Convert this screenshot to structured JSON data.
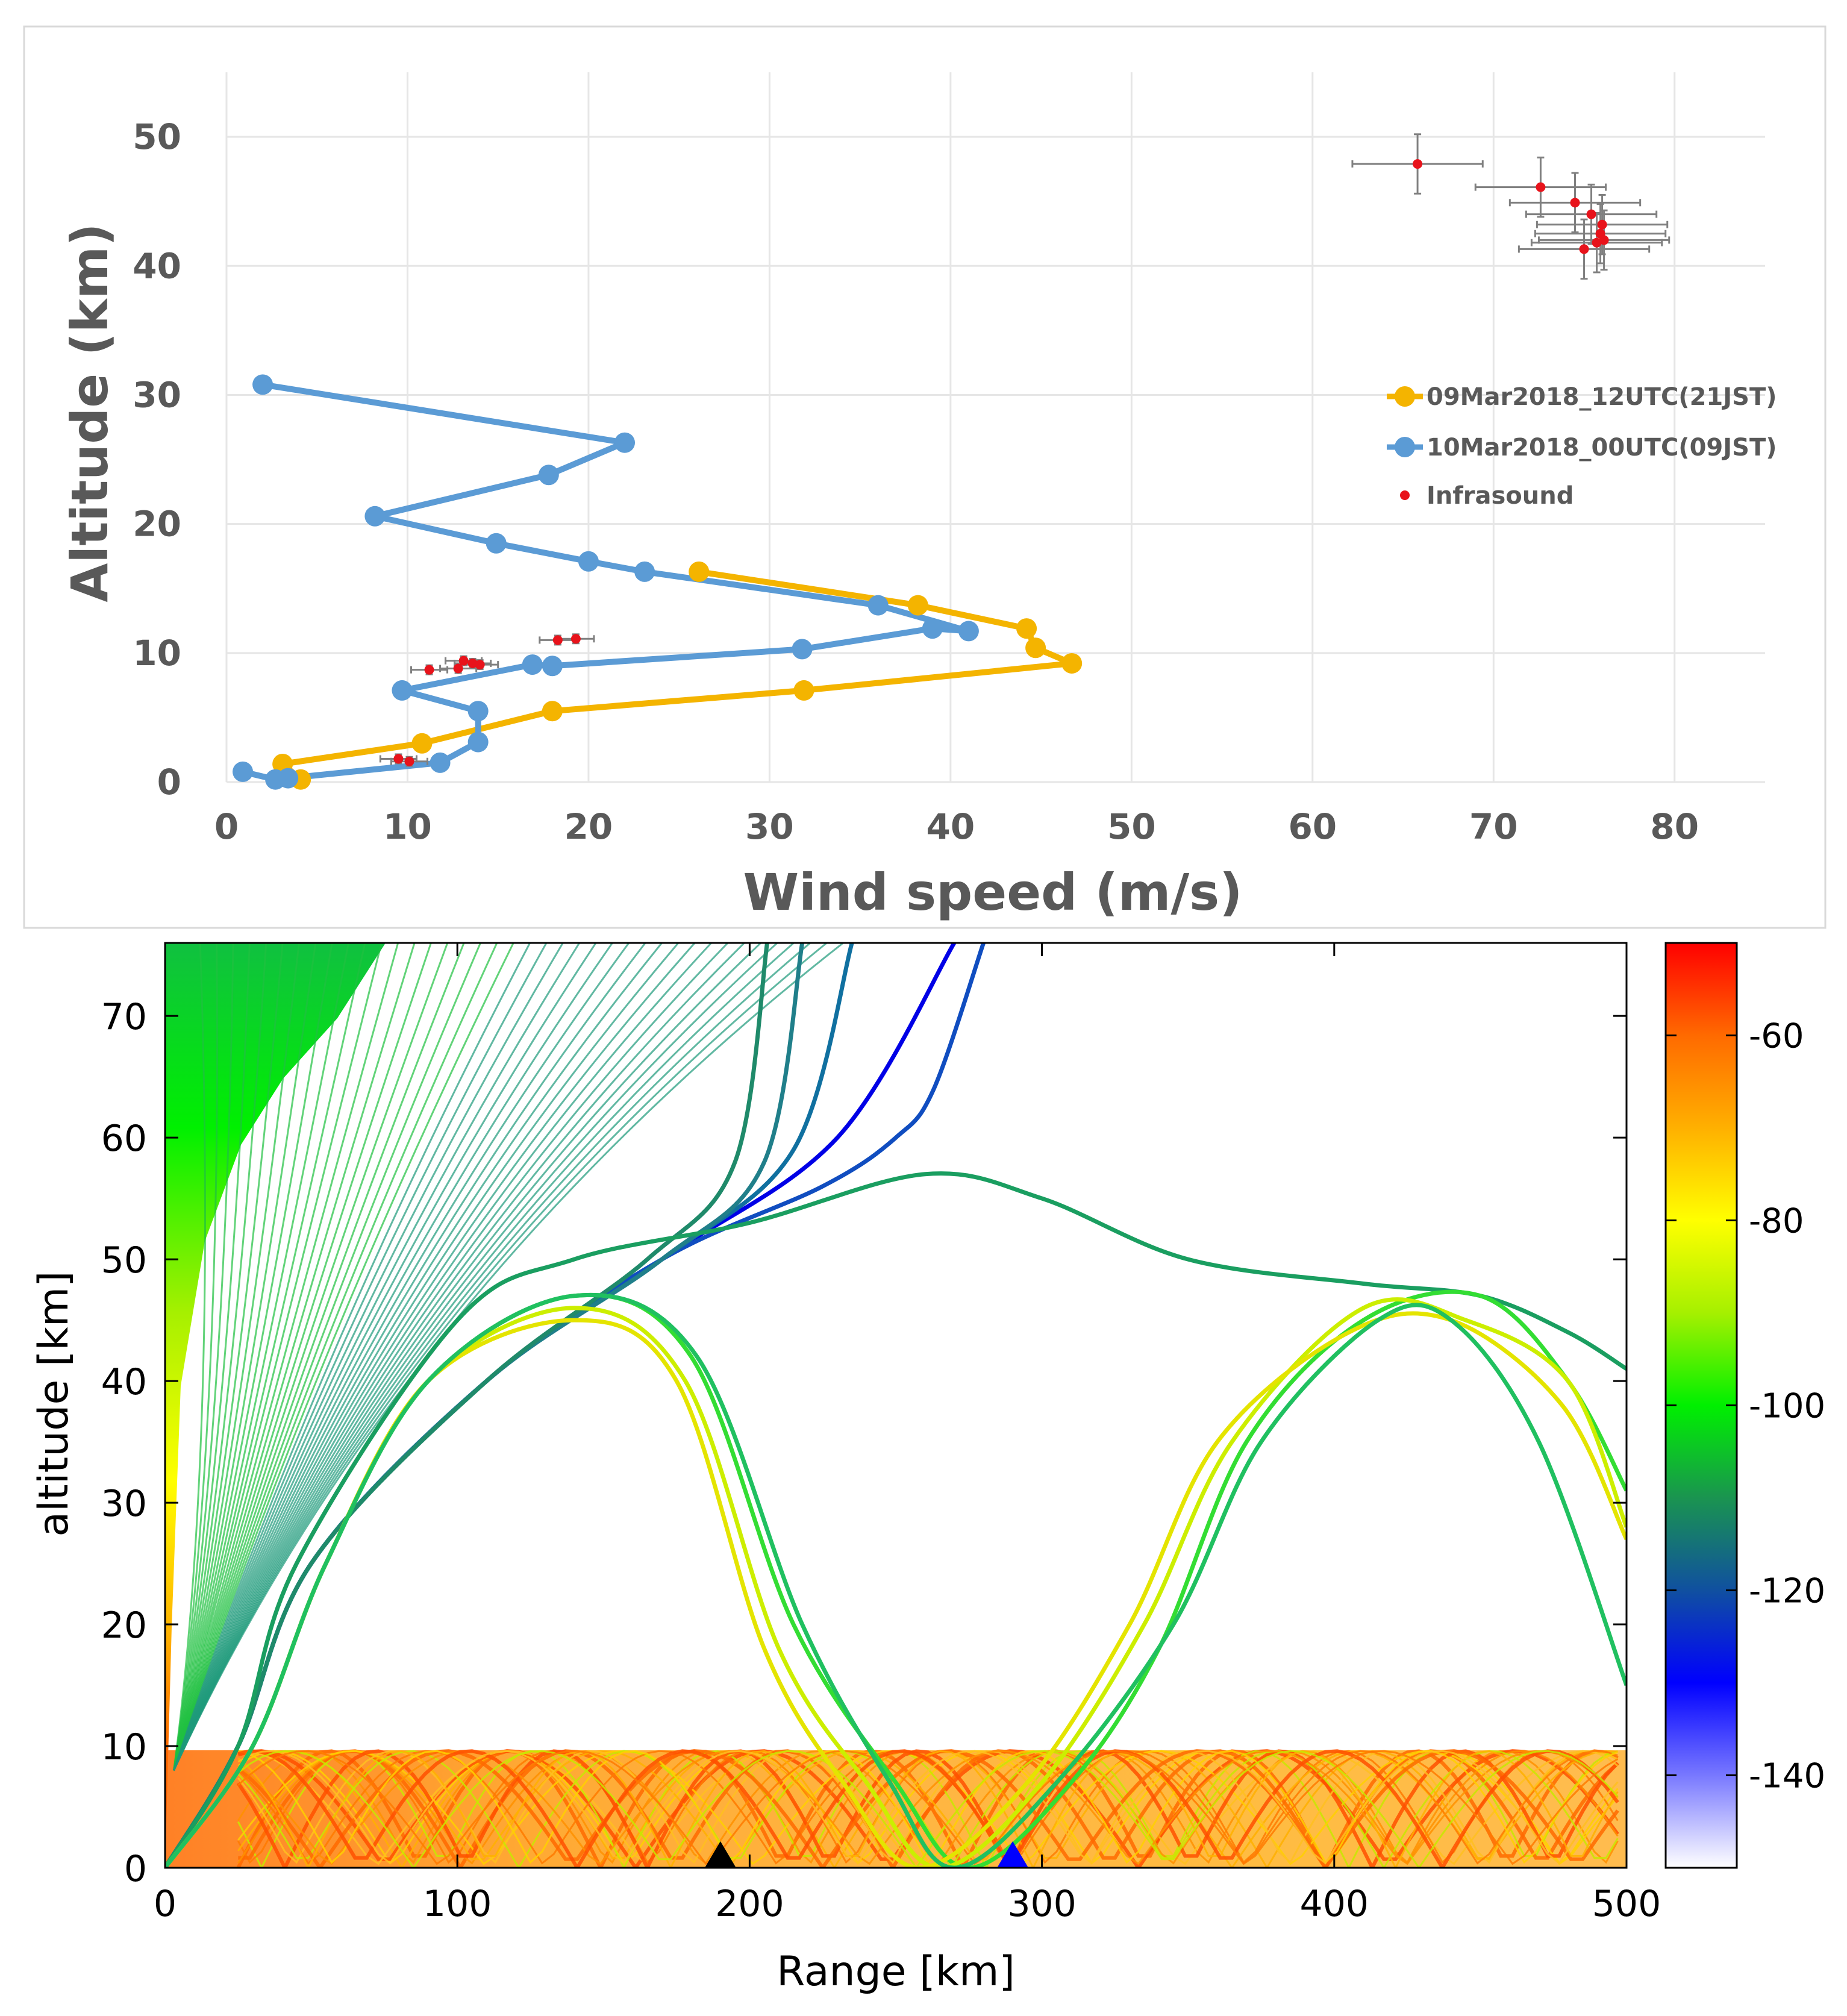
{
  "chart_data": [
    {
      "type": "scatter",
      "title": "",
      "xlabel": "Wind speed (m/s)",
      "ylabel": "Altitude (km)",
      "xlim": [
        0,
        85
      ],
      "ylim": [
        0,
        55
      ],
      "xticks": [
        "0",
        "10",
        "20",
        "30",
        "40",
        "50",
        "60",
        "70",
        "80"
      ],
      "yticks": [
        "0",
        "10",
        "20",
        "30",
        "40",
        "50"
      ],
      "grid": true,
      "legend_position": "right",
      "series": [
        {
          "name": "09Mar2018_12UTC(21JST)",
          "color": "#F4B400",
          "points": [
            [
              4.1,
              0.2
            ],
            [
              3.1,
              1.4
            ],
            [
              10.8,
              3.0
            ],
            [
              18.0,
              5.5
            ],
            [
              31.9,
              7.1
            ],
            [
              46.7,
              9.2
            ],
            [
              44.7,
              10.4
            ],
            [
              44.2,
              11.9
            ],
            [
              38.2,
              13.7
            ],
            [
              26.1,
              16.3
            ]
          ]
        },
        {
          "name": "10Mar2018_00UTC(09JST)",
          "color": "#5B9BD5",
          "points": [
            [
              2.0,
              30.8
            ],
            [
              22.0,
              26.3
            ],
            [
              17.8,
              23.8
            ],
            [
              8.2,
              20.6
            ],
            [
              14.9,
              18.5
            ],
            [
              20.0,
              17.1
            ],
            [
              23.1,
              16.3
            ],
            [
              36.0,
              13.7
            ],
            [
              41.0,
              11.7
            ],
            [
              39.0,
              11.9
            ],
            [
              31.8,
              10.3
            ],
            [
              18.0,
              9.0
            ],
            [
              16.9,
              9.1
            ],
            [
              9.7,
              7.1
            ],
            [
              13.9,
              5.5
            ],
            [
              13.9,
              3.1
            ],
            [
              11.8,
              1.5
            ],
            [
              3.4,
              0.3
            ],
            [
              2.7,
              0.2
            ],
            [
              0.9,
              0.8
            ]
          ]
        },
        {
          "name": "Infrasound",
          "color": "#E8131B",
          "points": [
            [
              65.8,
              47.9
            ],
            [
              72.6,
              46.1
            ],
            [
              74.5,
              44.9
            ],
            [
              75.4,
              44.0
            ],
            [
              76.0,
              43.2
            ],
            [
              75.9,
              42.5
            ],
            [
              76.1,
              42.0
            ],
            [
              75.7,
              41.8
            ],
            [
              75.0,
              41.3
            ],
            [
              18.3,
              11.0
            ],
            [
              19.3,
              11.1
            ],
            [
              13.1,
              9.4
            ],
            [
              13.6,
              9.2
            ],
            [
              14.0,
              9.1
            ],
            [
              12.8,
              8.8
            ],
            [
              11.2,
              8.7
            ],
            [
              9.5,
              1.8
            ],
            [
              10.1,
              1.6
            ]
          ]
        }
      ]
    },
    {
      "type": "line",
      "title": "",
      "xlabel": "Range [km]",
      "ylabel": "altitude [km]",
      "xlim": [
        0,
        500
      ],
      "ylim": [
        0,
        75
      ],
      "xticks": [
        "0",
        "100",
        "200",
        "300",
        "400",
        "500"
      ],
      "yticks": [
        "0",
        "10",
        "20",
        "30",
        "40",
        "50",
        "60",
        "70"
      ],
      "colorbar": {
        "range": [
          -150,
          -50
        ],
        "ticks": [
          "-60",
          "-80",
          "-100",
          "-120",
          "-140"
        ],
        "colormap": [
          "#FF0000",
          "#FF6A00",
          "#FFB000",
          "#FFFF00",
          "#A6F000",
          "#00F000",
          "#1A9450",
          "#1050A0",
          "#0000FF",
          "#7878FF",
          "#FFFFFF"
        ]
      },
      "series": [
        {
          "name": "escaping-ray-1",
          "color": "#0000E6",
          "points": [
            [
              0,
              0
            ],
            [
              25,
              10
            ],
            [
              50,
              25
            ],
            [
              110,
              40
            ],
            [
              170,
              50
            ],
            [
              230,
              60
            ],
            [
              270,
              76
            ]
          ]
        },
        {
          "name": "escaping-ray-2",
          "color": "#104DC0",
          "points": [
            [
              0,
              0
            ],
            [
              25,
              10
            ],
            [
              50,
              25
            ],
            [
              110,
              40
            ],
            [
              170,
              50
            ],
            [
              225,
              56
            ],
            [
              250,
              60
            ],
            [
              263,
              64
            ],
            [
              280,
              76
            ]
          ]
        },
        {
          "name": "escaping-ray-3",
          "color": "#1070A0",
          "points": [
            [
              0,
              0
            ],
            [
              25,
              10
            ],
            [
              50,
              25
            ],
            [
              110,
              40
            ],
            [
              170,
              50
            ],
            [
              215,
              59
            ],
            [
              235,
              76
            ]
          ]
        },
        {
          "name": "escaping-ray-4",
          "color": "#207F8A",
          "points": [
            [
              0,
              0
            ],
            [
              25,
              10
            ],
            [
              50,
              25
            ],
            [
              110,
              40
            ],
            [
              170,
              50
            ],
            [
              205,
              58
            ],
            [
              218,
              76
            ]
          ]
        },
        {
          "name": "escaping-ray-5",
          "color": "#1F8A6A",
          "points": [
            [
              0,
              0
            ],
            [
              25,
              10
            ],
            [
              50,
              25
            ],
            [
              110,
              40
            ],
            [
              165,
              50
            ],
            [
              195,
              58
            ],
            [
              206,
              76
            ]
          ]
        },
        {
          "name": "high-ray",
          "color": "#1A9E60",
          "points": [
            [
              0,
              0
            ],
            [
              25,
              10
            ],
            [
              45,
              25
            ],
            [
              100,
              45
            ],
            [
              140,
              50
            ],
            [
              200,
              53
            ],
            [
              260,
              57
            ],
            [
              300,
              55
            ],
            [
              350,
              50
            ],
            [
              410,
              48
            ],
            [
              450,
              47
            ],
            [
              480,
              44
            ],
            [
              500,
              41
            ]
          ]
        },
        {
          "name": "strato-ray-1",
          "color": "#33DD33",
          "points": [
            [
              0,
              0
            ],
            [
              30,
              10
            ],
            [
              55,
              25
            ],
            [
              90,
              40
            ],
            [
              140,
              47
            ],
            [
              180,
              42
            ],
            [
              215,
              20
            ],
            [
              250,
              7
            ],
            [
              275,
              0
            ],
            [
              310,
              7
            ],
            [
              340,
              18
            ],
            [
              370,
              35
            ],
            [
              410,
              45
            ],
            [
              450,
              47
            ],
            [
              480,
              40
            ],
            [
              500,
              31
            ]
          ]
        },
        {
          "name": "strato-ray-2",
          "color": "#CCEE00",
          "points": [
            [
              0,
              0
            ],
            [
              30,
              10
            ],
            [
              55,
              25
            ],
            [
              90,
              40
            ],
            [
              140,
              46
            ],
            [
              178,
              40
            ],
            [
              210,
              18
            ],
            [
              240,
              7
            ],
            [
              265,
              0
            ],
            [
              300,
              7
            ],
            [
              335,
              20
            ],
            [
              365,
              35
            ],
            [
              410,
              46
            ],
            [
              445,
              45
            ],
            [
              480,
              40
            ],
            [
              500,
              28
            ]
          ]
        },
        {
          "name": "strato-ray-3",
          "color": "#E4E400",
          "points": [
            [
              0,
              0
            ],
            [
              30,
              10
            ],
            [
              55,
              25
            ],
            [
              90,
              40
            ],
            [
              140,
              45
            ],
            [
              175,
              40
            ],
            [
              205,
              18
            ],
            [
              232,
              7
            ],
            [
              258,
              0
            ],
            [
              295,
              7
            ],
            [
              330,
              20
            ],
            [
              360,
              35
            ],
            [
              405,
              44
            ],
            [
              440,
              45
            ],
            [
              478,
              38
            ],
            [
              500,
              27
            ]
          ]
        },
        {
          "name": "strato-ray-4",
          "color": "#20C060",
          "points": [
            [
              0,
              0
            ],
            [
              30,
              10
            ],
            [
              55,
              25
            ],
            [
              90,
              40
            ],
            [
              140,
              47
            ],
            [
              182,
              42
            ],
            [
              218,
              20
            ],
            [
              248,
              7
            ],
            [
              270,
              0
            ],
            [
              305,
              7
            ],
            [
              345,
              20
            ],
            [
              375,
              35
            ],
            [
              415,
              45
            ],
            [
              440,
              45
            ],
            [
              470,
              35
            ],
            [
              500,
              15
            ]
          ]
        }
      ],
      "markers": [
        {
          "name": "black-station",
          "x": 190,
          "y": 0,
          "color": "#000000"
        },
        {
          "name": "blue-station",
          "x": 290,
          "y": 0,
          "color": "#0000FF"
        }
      ]
    }
  ]
}
